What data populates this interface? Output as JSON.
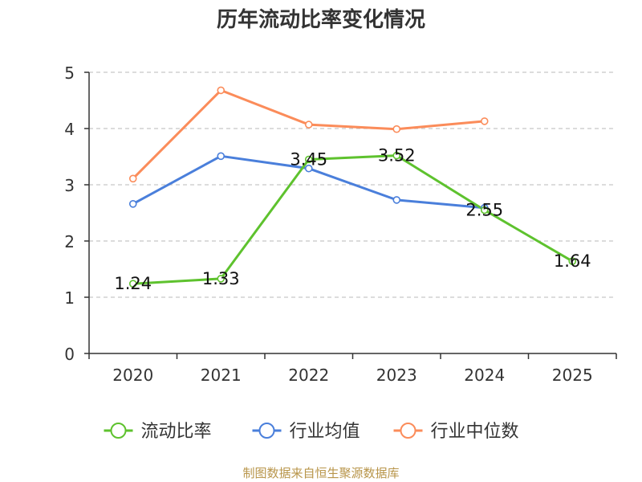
{
  "chart_data": {
    "type": "line",
    "title": "历年流动比率变化情况",
    "categories": [
      "2020",
      "2021",
      "2022",
      "2023",
      "2024",
      "2025"
    ],
    "ylim": [
      0,
      5
    ],
    "yticks": [
      0,
      1,
      2,
      3,
      4,
      5
    ],
    "grid": true,
    "legend_position": "bottom-center",
    "series": [
      {
        "name": "流动比率",
        "color": "#5ec22e",
        "values": [
          1.24,
          1.33,
          3.45,
          3.52,
          2.55,
          1.64
        ],
        "labels": [
          "1.24",
          "1.33",
          "3.45",
          "3.52",
          "2.55",
          "1.64"
        ]
      },
      {
        "name": "行业均值",
        "color": "#4a7fdb",
        "values": [
          2.66,
          3.51,
          3.29,
          2.73,
          2.59,
          null
        ]
      },
      {
        "name": "行业中位数",
        "color": "#fb8c5a",
        "values": [
          3.11,
          4.68,
          4.07,
          3.99,
          4.13,
          null
        ]
      }
    ]
  },
  "source": "制图数据来自恒生聚源数据库"
}
